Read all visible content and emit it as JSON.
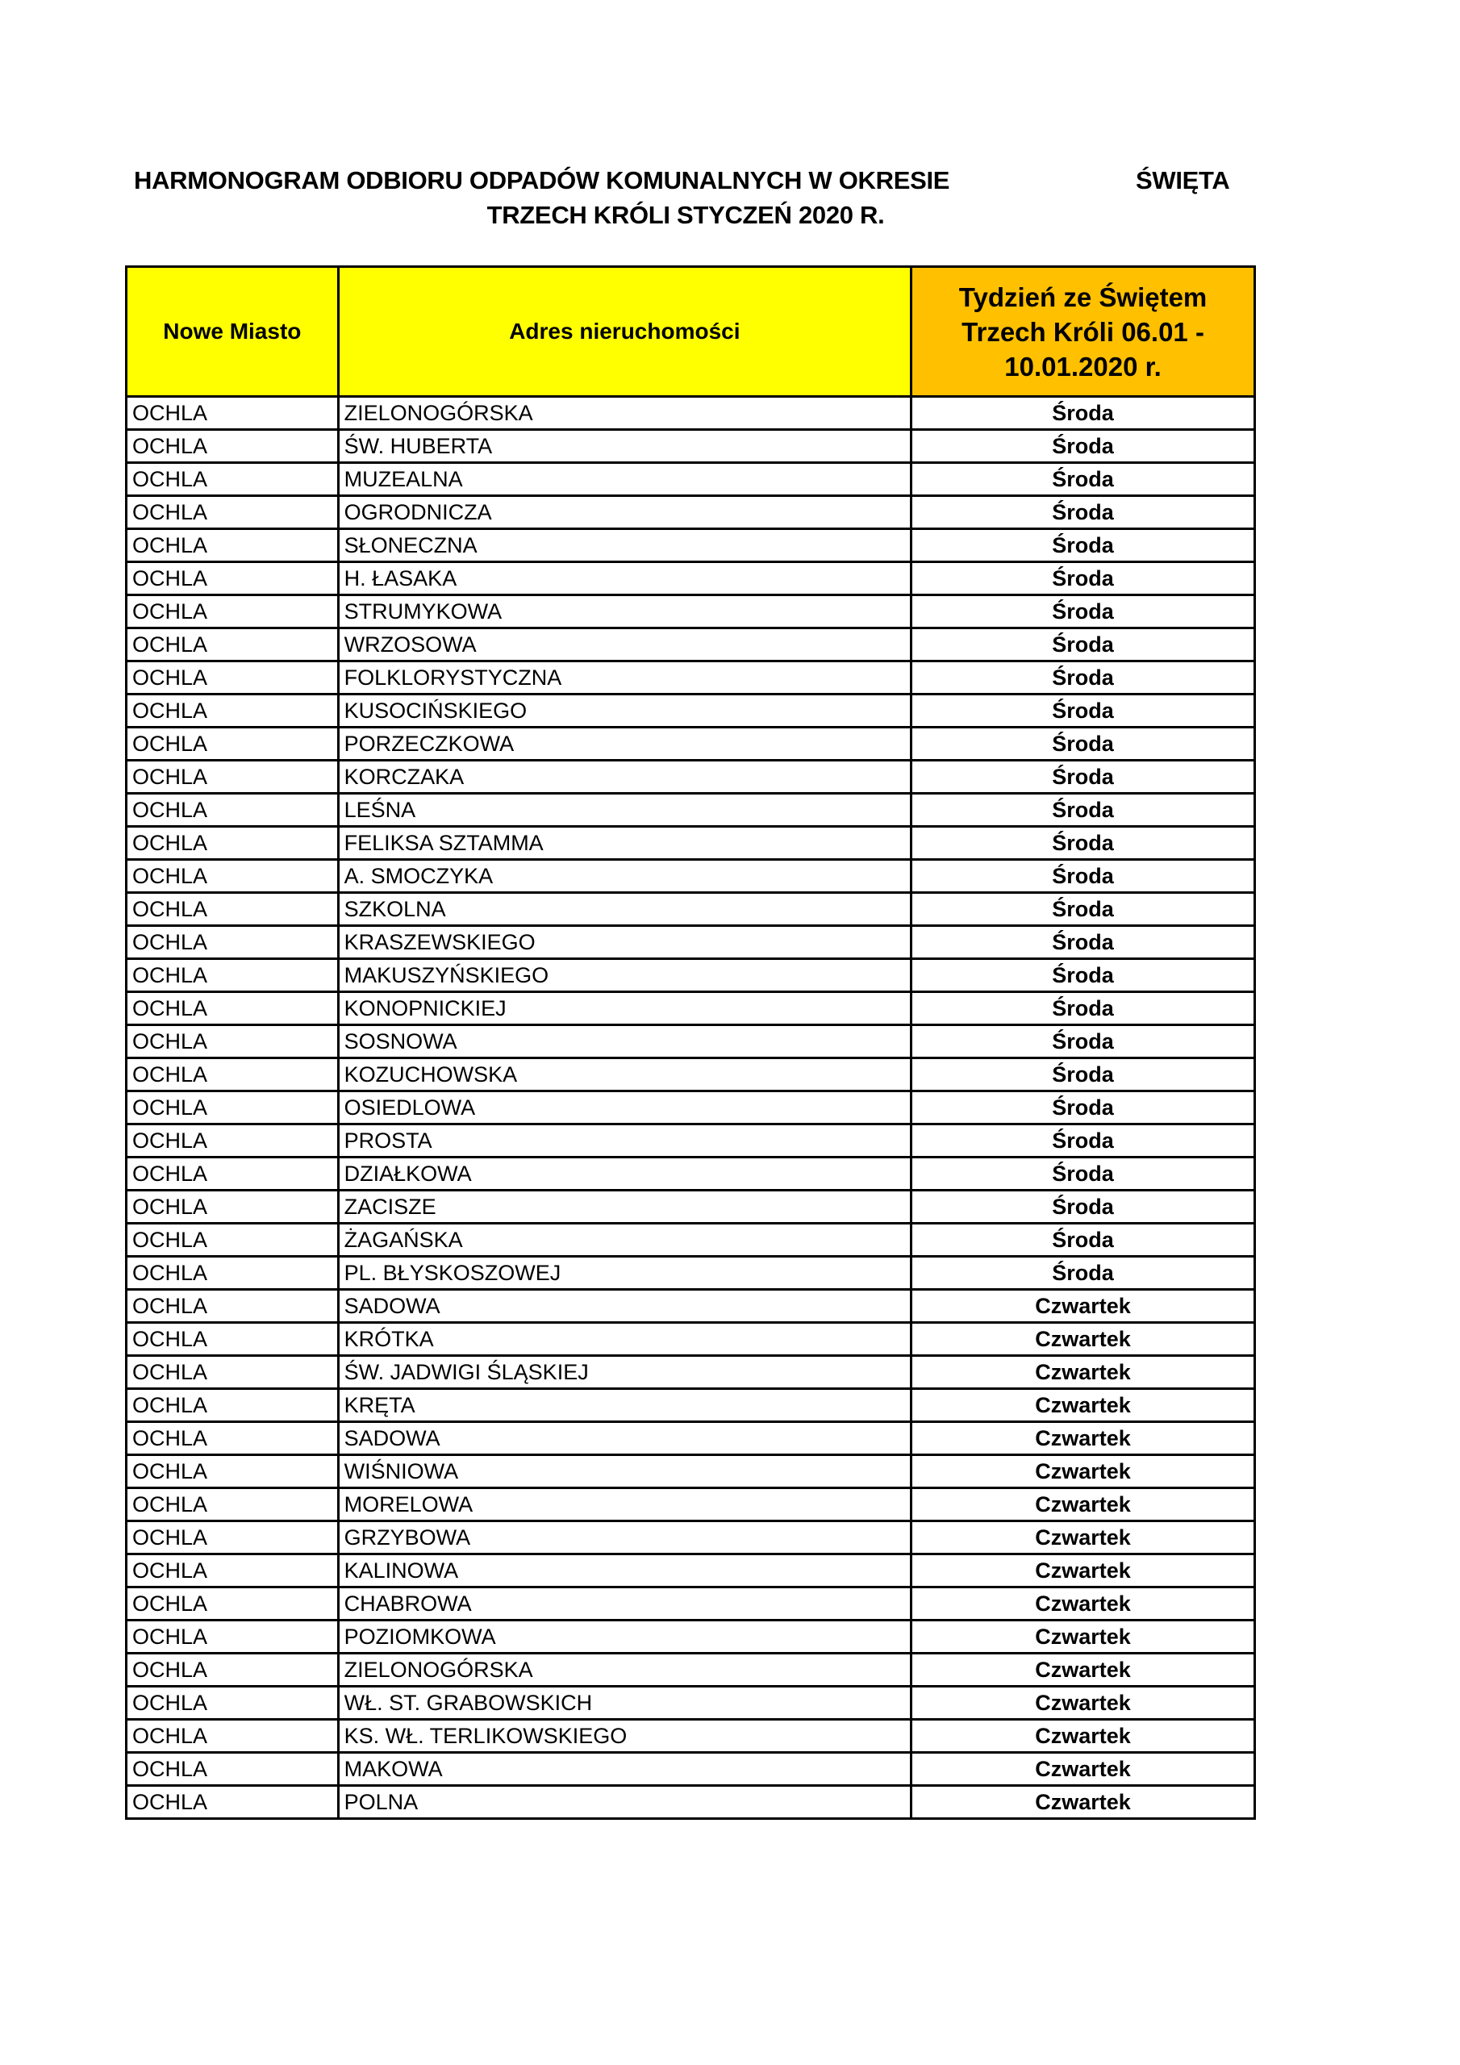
{
  "title": {
    "line1": "HARMONOGRAM ODBIORU ODPADÓW KOMUNALNYCH W OKRESIE",
    "line1_right": "ŚWIĘTA",
    "line2": "TRZECH KRÓLI STYCZEŃ 2020 R."
  },
  "colors": {
    "header_yellow": "#ffff00",
    "header_orange": "#ffc000"
  },
  "table": {
    "headers": [
      "Nowe Miasto",
      "Adres nieruchomości",
      "Tydzień ze Świętem Trzech Króli 06.01 - 10.01.2020 r."
    ],
    "rows": [
      [
        "OCHLA",
        "ZIELONOGÓRSKA",
        "Środa"
      ],
      [
        "OCHLA",
        "ŚW. HUBERTA",
        "Środa"
      ],
      [
        "OCHLA",
        "MUZEALNA",
        "Środa"
      ],
      [
        "OCHLA",
        "OGRODNICZA",
        "Środa"
      ],
      [
        "OCHLA",
        "SŁONECZNA",
        "Środa"
      ],
      [
        "OCHLA",
        "H. ŁASAKA",
        "Środa"
      ],
      [
        "OCHLA",
        "STRUMYKOWA",
        "Środa"
      ],
      [
        "OCHLA",
        "WRZOSOWA",
        "Środa"
      ],
      [
        "OCHLA",
        "FOLKLORYSTYCZNA",
        "Środa"
      ],
      [
        "OCHLA",
        "KUSOCIŃSKIEGO",
        "Środa"
      ],
      [
        "OCHLA",
        "PORZECZKOWA",
        "Środa"
      ],
      [
        "OCHLA",
        "KORCZAKA",
        "Środa"
      ],
      [
        "OCHLA",
        "LEŚNA",
        "Środa"
      ],
      [
        "OCHLA",
        "FELIKSA SZTAMMA",
        "Środa"
      ],
      [
        "OCHLA",
        "A. SMOCZYKA",
        "Środa"
      ],
      [
        "OCHLA",
        "SZKOLNA",
        "Środa"
      ],
      [
        "OCHLA",
        "KRASZEWSKIEGO",
        "Środa"
      ],
      [
        "OCHLA",
        "MAKUSZYŃSKIEGO",
        "Środa"
      ],
      [
        "OCHLA",
        "KONOPNICKIEJ",
        "Środa"
      ],
      [
        "OCHLA",
        "SOSNOWA",
        "Środa"
      ],
      [
        "OCHLA",
        "KOZUCHOWSKA",
        "Środa"
      ],
      [
        "OCHLA",
        "OSIEDLOWA",
        "Środa"
      ],
      [
        "OCHLA",
        "PROSTA",
        "Środa"
      ],
      [
        "OCHLA",
        "DZIAŁKOWA",
        "Środa"
      ],
      [
        "OCHLA",
        "ZACISZE",
        "Środa"
      ],
      [
        "OCHLA",
        "ŻAGAŃSKA",
        "Środa"
      ],
      [
        "OCHLA",
        "PL. BŁYSKOSZOWEJ",
        "Środa"
      ],
      [
        "OCHLA",
        "SADOWA",
        "Czwartek"
      ],
      [
        "OCHLA",
        "KRÓTKA",
        "Czwartek"
      ],
      [
        "OCHLA",
        "ŚW. JADWIGI ŚLĄSKIEJ",
        "Czwartek"
      ],
      [
        "OCHLA",
        "KRĘTA",
        "Czwartek"
      ],
      [
        "OCHLA",
        "SADOWA",
        "Czwartek"
      ],
      [
        "OCHLA",
        "WIŚNIOWA",
        "Czwartek"
      ],
      [
        "OCHLA",
        "MORELOWA",
        "Czwartek"
      ],
      [
        "OCHLA",
        "GRZYBOWA",
        "Czwartek"
      ],
      [
        "OCHLA",
        "KALINOWA",
        "Czwartek"
      ],
      [
        "OCHLA",
        "CHABROWA",
        "Czwartek"
      ],
      [
        "OCHLA",
        "POZIOMKOWA",
        "Czwartek"
      ],
      [
        "OCHLA",
        "ZIELONOGÓRSKA",
        "Czwartek"
      ],
      [
        "OCHLA",
        "WŁ. ST. GRABOWSKICH",
        "Czwartek"
      ],
      [
        "OCHLA",
        "KS. WŁ. TERLIKOWSKIEGO",
        "Czwartek"
      ],
      [
        "OCHLA",
        "MAKOWA",
        "Czwartek"
      ],
      [
        "OCHLA",
        "POLNA",
        "Czwartek"
      ]
    ]
  }
}
